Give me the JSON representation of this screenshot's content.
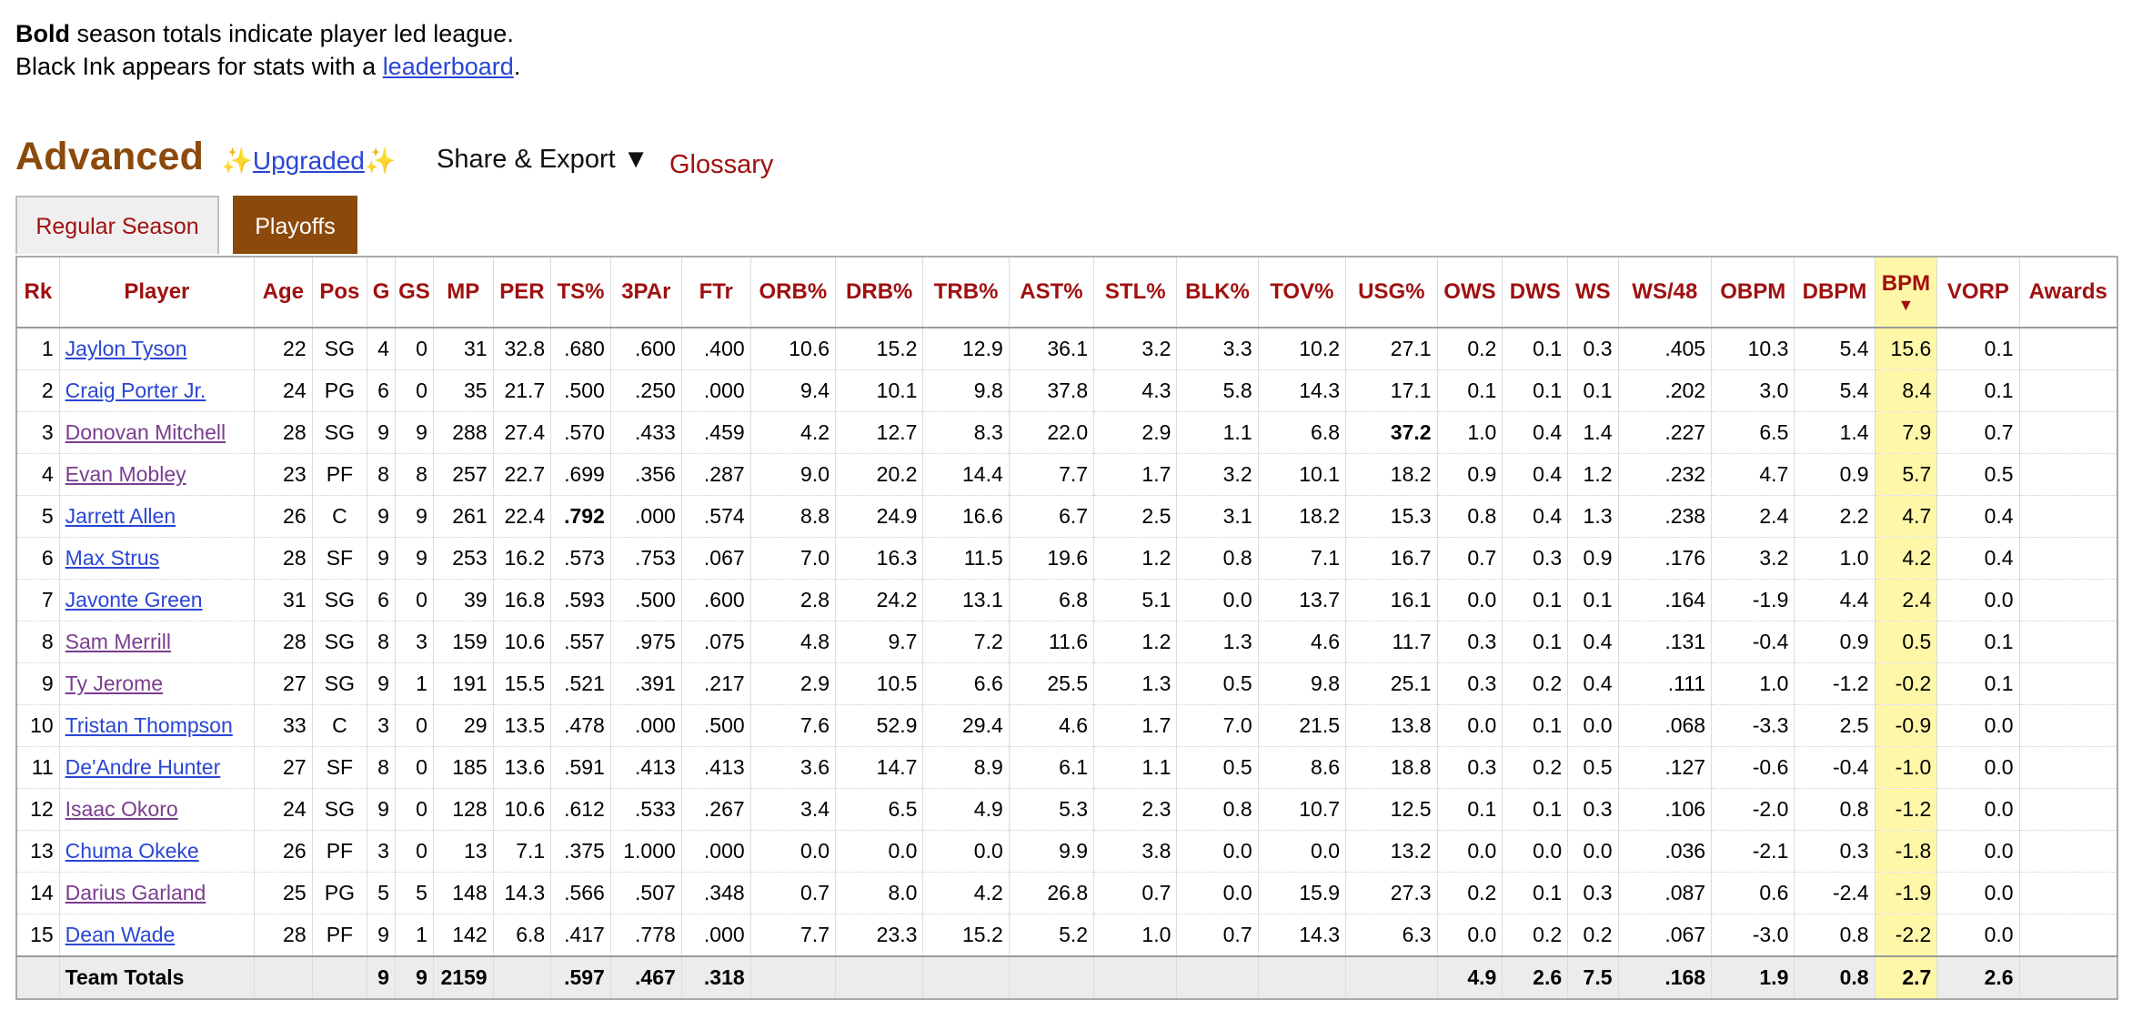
{
  "note": {
    "bold_word": "Bold",
    "line1_rest": " season totals indicate player led league.",
    "line2_pre": "Black Ink appears for stats with a ",
    "line2_link": "leaderboard",
    "line2_post": "."
  },
  "section": {
    "title": "Advanced",
    "upgraded": "Upgraded",
    "spark": "✨",
    "share": "Share & Export ▼",
    "glossary": "Glossary"
  },
  "tabs": [
    "Regular Season",
    "Playoffs"
  ],
  "active_tab": "Playoffs",
  "columns": [
    "Rk",
    "Player",
    "Age",
    "Pos",
    "G",
    "GS",
    "MP",
    "PER",
    "TS%",
    "3PAr",
    "FTr",
    "ORB%",
    "DRB%",
    "TRB%",
    "AST%",
    "STL%",
    "BLK%",
    "TOV%",
    "USG%",
    "OWS",
    "DWS",
    "WS",
    "WS/48",
    "OBPM",
    "DBPM",
    "BPM",
    "VORP",
    "Awards"
  ],
  "sorted_column": "BPM",
  "sort_arrow": "▼",
  "rows": [
    {
      "rk": "1",
      "player": "Jaylon Tyson",
      "visited": false,
      "cells": [
        "22",
        "SG",
        "4",
        "0",
        "31",
        "32.8",
        ".680",
        ".600",
        ".400",
        "10.6",
        "15.2",
        "12.9",
        "36.1",
        "3.2",
        "3.3",
        "10.2",
        "27.1",
        "0.2",
        "0.1",
        "0.3",
        ".405",
        "10.3",
        "5.4",
        "15.6",
        "0.1",
        ""
      ]
    },
    {
      "rk": "2",
      "player": "Craig Porter Jr.",
      "visited": false,
      "cells": [
        "24",
        "PG",
        "6",
        "0",
        "35",
        "21.7",
        ".500",
        ".250",
        ".000",
        "9.4",
        "10.1",
        "9.8",
        "37.8",
        "4.3",
        "5.8",
        "14.3",
        "17.1",
        "0.1",
        "0.1",
        "0.1",
        ".202",
        "3.0",
        "5.4",
        "8.4",
        "0.1",
        ""
      ]
    },
    {
      "rk": "3",
      "player": "Donovan Mitchell",
      "visited": true,
      "cells": [
        "28",
        "SG",
        "9",
        "9",
        "288",
        "27.4",
        ".570",
        ".433",
        ".459",
        "4.2",
        "12.7",
        "8.3",
        "22.0",
        "2.9",
        "1.1",
        "6.8",
        "37.2",
        "1.0",
        "0.4",
        "1.4",
        ".227",
        "6.5",
        "1.4",
        "7.9",
        "0.7",
        ""
      ],
      "bold": [
        "USG%"
      ]
    },
    {
      "rk": "4",
      "player": "Evan Mobley",
      "visited": true,
      "cells": [
        "23",
        "PF",
        "8",
        "8",
        "257",
        "22.7",
        ".699",
        ".356",
        ".287",
        "9.0",
        "20.2",
        "14.4",
        "7.7",
        "1.7",
        "3.2",
        "10.1",
        "18.2",
        "0.9",
        "0.4",
        "1.2",
        ".232",
        "4.7",
        "0.9",
        "5.7",
        "0.5",
        ""
      ]
    },
    {
      "rk": "5",
      "player": "Jarrett Allen",
      "visited": false,
      "cells": [
        "26",
        "C",
        "9",
        "9",
        "261",
        "22.4",
        ".792",
        ".000",
        ".574",
        "8.8",
        "24.9",
        "16.6",
        "6.7",
        "2.5",
        "3.1",
        "18.2",
        "15.3",
        "0.8",
        "0.4",
        "1.3",
        ".238",
        "2.4",
        "2.2",
        "4.7",
        "0.4",
        ""
      ],
      "bold": [
        "TS%"
      ]
    },
    {
      "rk": "6",
      "player": "Max Strus",
      "visited": false,
      "cells": [
        "28",
        "SF",
        "9",
        "9",
        "253",
        "16.2",
        ".573",
        ".753",
        ".067",
        "7.0",
        "16.3",
        "11.5",
        "19.6",
        "1.2",
        "0.8",
        "7.1",
        "16.7",
        "0.7",
        "0.3",
        "0.9",
        ".176",
        "3.2",
        "1.0",
        "4.2",
        "0.4",
        ""
      ]
    },
    {
      "rk": "7",
      "player": "Javonte Green",
      "visited": false,
      "cells": [
        "31",
        "SG",
        "6",
        "0",
        "39",
        "16.8",
        ".593",
        ".500",
        ".600",
        "2.8",
        "24.2",
        "13.1",
        "6.8",
        "5.1",
        "0.0",
        "13.7",
        "16.1",
        "0.0",
        "0.1",
        "0.1",
        ".164",
        "-1.9",
        "4.4",
        "2.4",
        "0.0",
        ""
      ]
    },
    {
      "rk": "8",
      "player": "Sam Merrill",
      "visited": true,
      "cells": [
        "28",
        "SG",
        "8",
        "3",
        "159",
        "10.6",
        ".557",
        ".975",
        ".075",
        "4.8",
        "9.7",
        "7.2",
        "11.6",
        "1.2",
        "1.3",
        "4.6",
        "11.7",
        "0.3",
        "0.1",
        "0.4",
        ".131",
        "-0.4",
        "0.9",
        "0.5",
        "0.1",
        ""
      ]
    },
    {
      "rk": "9",
      "player": "Ty Jerome",
      "visited": true,
      "cells": [
        "27",
        "SG",
        "9",
        "1",
        "191",
        "15.5",
        ".521",
        ".391",
        ".217",
        "2.9",
        "10.5",
        "6.6",
        "25.5",
        "1.3",
        "0.5",
        "9.8",
        "25.1",
        "0.3",
        "0.2",
        "0.4",
        ".111",
        "1.0",
        "-1.2",
        "-0.2",
        "0.1",
        ""
      ]
    },
    {
      "rk": "10",
      "player": "Tristan Thompson",
      "visited": false,
      "cells": [
        "33",
        "C",
        "3",
        "0",
        "29",
        "13.5",
        ".478",
        ".000",
        ".500",
        "7.6",
        "52.9",
        "29.4",
        "4.6",
        "1.7",
        "7.0",
        "21.5",
        "13.8",
        "0.0",
        "0.1",
        "0.0",
        ".068",
        "-3.3",
        "2.5",
        "-0.9",
        "0.0",
        ""
      ]
    },
    {
      "rk": "11",
      "player": "De'Andre Hunter",
      "visited": false,
      "cells": [
        "27",
        "SF",
        "8",
        "0",
        "185",
        "13.6",
        ".591",
        ".413",
        ".413",
        "3.6",
        "14.7",
        "8.9",
        "6.1",
        "1.1",
        "0.5",
        "8.6",
        "18.8",
        "0.3",
        "0.2",
        "0.5",
        ".127",
        "-0.6",
        "-0.4",
        "-1.0",
        "0.0",
        ""
      ]
    },
    {
      "rk": "12",
      "player": "Isaac Okoro",
      "visited": true,
      "cells": [
        "24",
        "SG",
        "9",
        "0",
        "128",
        "10.6",
        ".612",
        ".533",
        ".267",
        "3.4",
        "6.5",
        "4.9",
        "5.3",
        "2.3",
        "0.8",
        "10.7",
        "12.5",
        "0.1",
        "0.1",
        "0.3",
        ".106",
        "-2.0",
        "0.8",
        "-1.2",
        "0.0",
        ""
      ]
    },
    {
      "rk": "13",
      "player": "Chuma Okeke",
      "visited": false,
      "cells": [
        "26",
        "PF",
        "3",
        "0",
        "13",
        "7.1",
        ".375",
        "1.000",
        ".000",
        "0.0",
        "0.0",
        "0.0",
        "9.9",
        "3.8",
        "0.0",
        "0.0",
        "13.2",
        "0.0",
        "0.0",
        "0.0",
        ".036",
        "-2.1",
        "0.3",
        "-1.8",
        "0.0",
        ""
      ]
    },
    {
      "rk": "14",
      "player": "Darius Garland",
      "visited": true,
      "cells": [
        "25",
        "PG",
        "5",
        "5",
        "148",
        "14.3",
        ".566",
        ".507",
        ".348",
        "0.7",
        "8.0",
        "4.2",
        "26.8",
        "0.7",
        "0.0",
        "15.9",
        "27.3",
        "0.2",
        "0.1",
        "0.3",
        ".087",
        "0.6",
        "-2.4",
        "-1.9",
        "0.0",
        ""
      ]
    },
    {
      "rk": "15",
      "player": "Dean Wade",
      "visited": false,
      "cells": [
        "28",
        "PF",
        "9",
        "1",
        "142",
        "6.8",
        ".417",
        ".778",
        ".000",
        "7.7",
        "23.3",
        "15.2",
        "5.2",
        "1.0",
        "0.7",
        "14.3",
        "6.3",
        "0.0",
        "0.2",
        "0.2",
        ".067",
        "-3.0",
        "0.8",
        "-2.2",
        "0.0",
        ""
      ]
    }
  ],
  "totals": {
    "label": "Team Totals",
    "cells": [
      "",
      "",
      "9",
      "9",
      "2159",
      "",
      ".597",
      ".467",
      ".318",
      "",
      "",
      "",
      "",
      "",
      "",
      "",
      "",
      "4.9",
      "2.6",
      "7.5",
      ".168",
      "1.9",
      "0.8",
      "2.7",
      "2.6",
      ""
    ]
  }
}
